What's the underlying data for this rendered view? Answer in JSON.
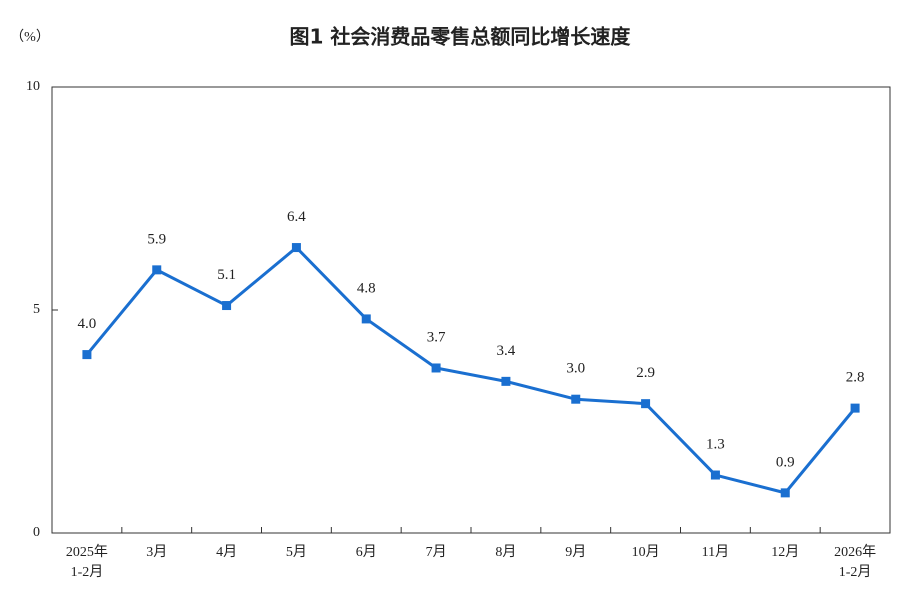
{
  "chart_data": {
    "type": "line",
    "title": "图1  社会消费品零售总额同比增长速度",
    "y_label": "（%）",
    "categories": [
      "2025年\n1-2月",
      "3月",
      "4月",
      "5月",
      "6月",
      "7月",
      "8月",
      "9月",
      "10月",
      "11月",
      "12月",
      "2026年\n1-2月"
    ],
    "values": [
      4.0,
      5.9,
      5.1,
      6.4,
      4.8,
      3.7,
      3.4,
      3.0,
      2.9,
      1.3,
      0.9,
      2.8
    ],
    "value_labels": [
      "4.0",
      "5.9",
      "5.1",
      "6.4",
      "4.8",
      "3.7",
      "3.4",
      "3.0",
      "2.9",
      "1.3",
      "0.9",
      "2.8"
    ],
    "color": "#1a6fd0",
    "ylim": [
      0,
      10
    ],
    "yticks": [
      0,
      5,
      10
    ],
    "grid": false
  }
}
